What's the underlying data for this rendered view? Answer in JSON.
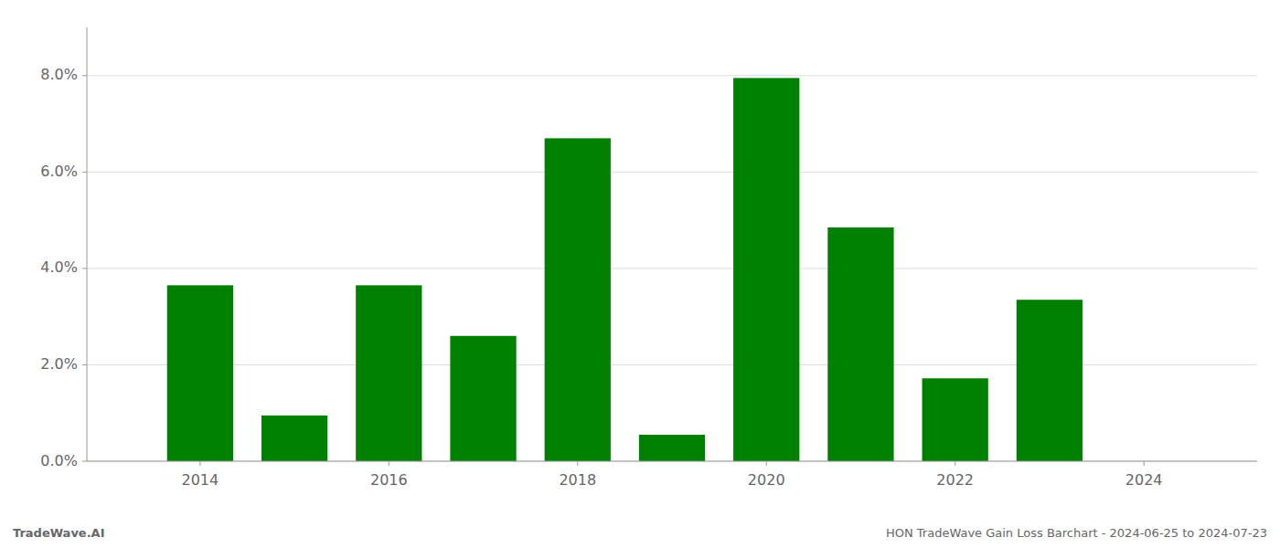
{
  "chart_data": {
    "type": "bar",
    "x": [
      2014,
      2015,
      2016,
      2017,
      2018,
      2019,
      2020,
      2021,
      2022,
      2023,
      2024
    ],
    "values": [
      3.65,
      0.95,
      3.65,
      2.6,
      6.7,
      0.55,
      7.95,
      4.85,
      1.72,
      3.35,
      null
    ],
    "color": "#008000",
    "xlim": [
      2012.8,
      2025.2
    ],
    "xticks": [
      2014,
      2016,
      2018,
      2020,
      2022,
      2024
    ],
    "ylim": [
      0,
      9.0
    ],
    "yticks": [
      {
        "value": 0.0,
        "label": "0.0%"
      },
      {
        "value": 2.0,
        "label": "2.0%"
      },
      {
        "value": 4.0,
        "label": "4.0%"
      },
      {
        "value": 6.0,
        "label": "6.0%"
      },
      {
        "value": 8.0,
        "label": "8.0%"
      }
    ],
    "grid": true,
    "annotations": [
      "TradeWave.AI",
      "HON TradeWave Gain Loss Barchart - 2024-06-25 to 2024-07-23"
    ]
  }
}
